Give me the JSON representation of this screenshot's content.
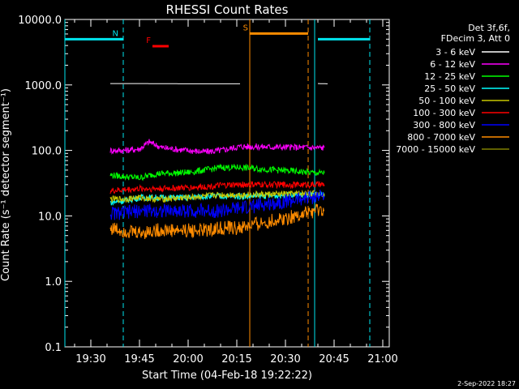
{
  "chart_data": {
    "type": "line",
    "title": "RHESSI Count Rates",
    "xlabel": "Start Time (04-Feb-18 19:22:22)",
    "ylabel": "Count Rate (s⁻¹ detector segment⁻¹)",
    "y_scale": "log",
    "ylim": [
      0.1,
      10000
    ],
    "xlim": [
      "19:22",
      "21:02"
    ],
    "x_ticks": [
      "19:30",
      "19:45",
      "20:00",
      "20:15",
      "20:30",
      "20:45",
      "21:00"
    ],
    "y_ticks": [
      "0.1",
      "1.0",
      "10.0",
      "100.0",
      "1000.0",
      "10000.0"
    ],
    "legend": {
      "placement": "right-outside",
      "header": [
        "Det 3f,6f,",
        "FDecim 3, Att 0"
      ]
    },
    "series": [
      {
        "name": "3 - 6 keV",
        "color": "#ffffff",
        "x": [
          "19:36",
          "19:36",
          "19:45",
          "20:00",
          "20:10",
          "20:16",
          "20:17",
          "20:40",
          "20:40",
          "20:43",
          "20:43"
        ],
        "values": [
          null,
          1050,
          1050,
          1040,
          1040,
          1040,
          null,
          1050,
          1050,
          1040,
          null
        ]
      },
      {
        "name": "6 - 12 keV",
        "color": "#ff00ff",
        "x": [
          "19:36",
          "19:40",
          "19:45",
          "19:48",
          "19:52",
          "20:00",
          "20:05",
          "20:10",
          "20:16",
          "20:40",
          "20:42"
        ],
        "values": [
          100,
          100,
          105,
          135,
          110,
          100,
          95,
          100,
          115,
          110,
          110
        ]
      },
      {
        "name": "12 - 25 keV",
        "color": "#00ff00",
        "x": [
          "19:36",
          "19:40",
          "19:45",
          "19:50",
          "20:00",
          "20:05",
          "20:10",
          "20:16",
          "20:40",
          "20:42"
        ],
        "values": [
          42,
          40,
          38,
          44,
          46,
          50,
          55,
          55,
          45,
          45
        ]
      },
      {
        "name": "25 - 50 keV",
        "color": "#00ffff",
        "x": [
          "19:36",
          "19:40",
          "19:45",
          "19:50",
          "20:00",
          "20:05",
          "20:10",
          "20:16",
          "20:40",
          "20:42"
        ],
        "values": [
          16,
          17,
          19,
          19,
          19,
          20,
          20,
          20,
          21,
          21
        ]
      },
      {
        "name": "50 - 100 keV",
        "color": "#c8c800",
        "x": [
          "19:36",
          "19:40",
          "19:45",
          "19:50",
          "20:00",
          "20:05",
          "20:10",
          "20:16",
          "20:40",
          "20:42"
        ],
        "values": [
          18,
          18,
          19,
          18,
          19,
          20,
          21,
          21,
          22,
          22
        ]
      },
      {
        "name": "100 - 300 keV",
        "color": "#ff0000",
        "x": [
          "19:36",
          "19:40",
          "19:45",
          "19:50",
          "20:00",
          "20:05",
          "20:10",
          "20:16",
          "20:40",
          "20:42"
        ],
        "values": [
          24,
          25,
          26,
          26,
          27,
          28,
          29,
          30,
          30,
          30
        ]
      },
      {
        "name": "300 - 800 keV",
        "color": "#0000ff",
        "x": [
          "19:36",
          "19:40",
          "19:45",
          "19:50",
          "20:00",
          "20:05",
          "20:10",
          "20:16",
          "20:40",
          "20:42"
        ],
        "values": [
          11,
          11,
          12,
          12,
          12,
          12,
          12,
          13,
          20,
          20
        ]
      },
      {
        "name": "800 - 7000 keV",
        "color": "#ff8c00",
        "x": [
          "19:36",
          "19:40",
          "19:45",
          "19:50",
          "20:00",
          "20:05",
          "20:10",
          "20:16",
          "20:40",
          "20:42"
        ],
        "values": [
          6.5,
          6,
          5.5,
          6,
          6,
          6,
          6.5,
          6.5,
          12,
          12
        ]
      },
      {
        "name": "7000 - 15000 keV",
        "color": "#808000",
        "x": [],
        "values": []
      }
    ],
    "attenuator_bars": [
      {
        "label": "",
        "color": "#00e5ee",
        "x_start": "19:22",
        "x_end": "19:40",
        "y": 5000
      },
      {
        "label": "N",
        "color": "#00e5ee",
        "x_start": "19:39",
        "x_end": "19:40",
        "y": 5000
      },
      {
        "label": "F",
        "color": "#ff0000",
        "x_start": "19:49",
        "x_end": "19:54",
        "y": 3900
      },
      {
        "label": "S",
        "color": "#ff8c00",
        "x_start": "20:19",
        "x_end": "20:37",
        "y": 6100
      },
      {
        "label": "",
        "color": "#00e5ee",
        "x_start": "20:40",
        "x_end": "20:56",
        "y": 5000
      }
    ],
    "vertical_markers": [
      {
        "x": "19:22",
        "color": "#00e5ee",
        "style": "solid"
      },
      {
        "x": "19:40",
        "color": "#00e5ee",
        "style": "dashed"
      },
      {
        "x": "20:19",
        "color": "#ff8c00",
        "style": "solid"
      },
      {
        "x": "20:37",
        "color": "#ff8c00",
        "style": "dashed"
      },
      {
        "x": "20:39",
        "color": "#00e5ee",
        "style": "solid"
      },
      {
        "x": "20:56",
        "color": "#00e5ee",
        "style": "dashed"
      }
    ],
    "data_gaps": [
      [
        "20:16",
        "20:39"
      ]
    ]
  },
  "footer": {
    "date_stamp": "2-Sep-2022 18:27"
  }
}
